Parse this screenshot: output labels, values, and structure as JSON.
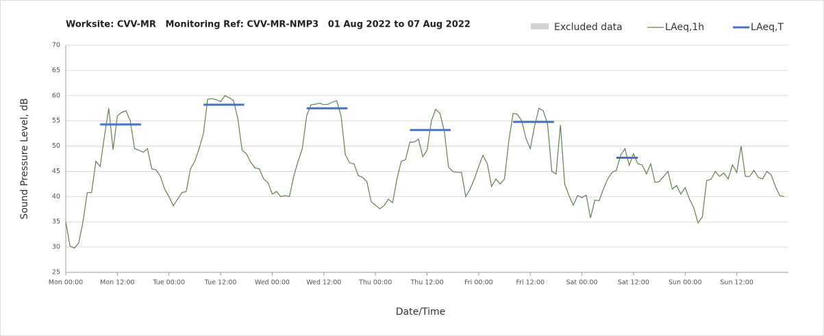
{
  "chart_data": {
    "type": "line",
    "title": "Worksite: CVV-MR   Monitoring Ref: CVV-MR-NMP3   01 Aug 2022 to 07 Aug 2022",
    "xlabel": "Date/Time",
    "ylabel": "Sound Pressure Level, dB",
    "excluded": {
      "name": "Excluded data",
      "color": "#d3d3d3"
    },
    "x": [
      0,
      1,
      2,
      3,
      4,
      5,
      6,
      7,
      8,
      9,
      10,
      11,
      12,
      13,
      14,
      15,
      16,
      17,
      18,
      19,
      20,
      21,
      22,
      23,
      24,
      25,
      26,
      27,
      28,
      29,
      30,
      31,
      32,
      33,
      34,
      35,
      36,
      37,
      38,
      39,
      40,
      41,
      42,
      43,
      44,
      45,
      46,
      47,
      48,
      49,
      50,
      51,
      52,
      53,
      54,
      55,
      56,
      57,
      58,
      59,
      60,
      61,
      62,
      63,
      64,
      65,
      66,
      67,
      68,
      69,
      70,
      71,
      72,
      73,
      74,
      75,
      76,
      77,
      78,
      79,
      80,
      81,
      82,
      83,
      84,
      85,
      86,
      87,
      88,
      89,
      90,
      91,
      92,
      93,
      94,
      95,
      96,
      97,
      98,
      99,
      100,
      101,
      102,
      103,
      104,
      105,
      106,
      107,
      108,
      109,
      110,
      111,
      112,
      113,
      114,
      115,
      116,
      117,
      118,
      119,
      120,
      121,
      122,
      123,
      124,
      125,
      126,
      127,
      128,
      129,
      130,
      131,
      132,
      133,
      134,
      135,
      136,
      137,
      138,
      139,
      140,
      141,
      142,
      143,
      144,
      145,
      146,
      147,
      148,
      149,
      150,
      151,
      152,
      153,
      154,
      155,
      156,
      157,
      158,
      159,
      160,
      161,
      162,
      163,
      164,
      165,
      166,
      167
    ],
    "series": [
      {
        "name": "LAeq,1h",
        "color": "#5f7f4f",
        "values": [
          35,
          30.2,
          29.8,
          30.8,
          35,
          40.8,
          40.8,
          47,
          46,
          52,
          57.5,
          49.3,
          56,
          56.7,
          57,
          55,
          49.5,
          49.2,
          48.8,
          49.5,
          45.5,
          45.3,
          44,
          41.5,
          40,
          38.2,
          39.5,
          40.8,
          41,
          45.5,
          47,
          49.5,
          52.5,
          59.3,
          59.4,
          59.2,
          58.8,
          60,
          59.6,
          59,
          55.5,
          49.2,
          48.5,
          46.8,
          45.7,
          45.5,
          43.5,
          42.8,
          40.5,
          41,
          40,
          40.2,
          40,
          44,
          47,
          49.5,
          56,
          58.2,
          58.3,
          58.5,
          58.2,
          58.3,
          58.7,
          59,
          56,
          48.3,
          46.7,
          46.5,
          44.2,
          43.8,
          43,
          39,
          38.3,
          37.6,
          38.2,
          39.5,
          38.8,
          43.5,
          47,
          47.3,
          50.8,
          50.8,
          51.4,
          47.9,
          49.2,
          55,
          57.3,
          56.5,
          53,
          45.8,
          45,
          44.8,
          44.8,
          40,
          41.5,
          43.5,
          46,
          48.2,
          46.5,
          42,
          43.5,
          42.5,
          43.5,
          51,
          56.5,
          56.3,
          55,
          51.5,
          49.5,
          54,
          57.5,
          57,
          54.5,
          45,
          44.5,
          54.2,
          42.5,
          40.2,
          38.3,
          40.2,
          39.8,
          40.3,
          35.8,
          39.3,
          39.2,
          41.5,
          43.5,
          44.8,
          45.2,
          48.2,
          49.5,
          46.2,
          48.5,
          46.5,
          46.3,
          44.5,
          46.5,
          42.8,
          43,
          44,
          45,
          41.5,
          42.2,
          40.5,
          41.8,
          39.5,
          37.8,
          34.8,
          36,
          43.2,
          43.4,
          45,
          44,
          44.7,
          43.5,
          46.3,
          44.8,
          50,
          44,
          44,
          45.2,
          43.8,
          43.5,
          45,
          44.3,
          42,
          40.2,
          40
        ]
      },
      {
        "name": "LAeq,T",
        "color": "#4472c4",
        "segments": [
          {
            "x": [
              8,
              17.5
            ],
            "value": 54.3
          },
          {
            "x": [
              32,
              41.5
            ],
            "value": 58.2
          },
          {
            "x": [
              56,
              65.5
            ],
            "value": 57.5
          },
          {
            "x": [
              80,
              89.5
            ],
            "value": 53.2
          },
          {
            "x": [
              104,
              113.5
            ],
            "value": 54.8
          },
          {
            "x": [
              128,
              133
            ],
            "value": 47.7
          }
        ]
      }
    ],
    "xlim": [
      0,
      168
    ],
    "xticks": [
      {
        "value": 0,
        "label": "Mon 00:00"
      },
      {
        "value": 12,
        "label": "Mon 12:00"
      },
      {
        "value": 24,
        "label": "Tue 00:00"
      },
      {
        "value": 36,
        "label": "Tue 12:00"
      },
      {
        "value": 48,
        "label": "Wed 00:00"
      },
      {
        "value": 60,
        "label": "Wed 12:00"
      },
      {
        "value": 72,
        "label": "Thu 00:00"
      },
      {
        "value": 84,
        "label": "Thu 12:00"
      },
      {
        "value": 96,
        "label": "Fri 00:00"
      },
      {
        "value": 108,
        "label": "Fri 12:00"
      },
      {
        "value": 120,
        "label": "Sat 00:00"
      },
      {
        "value": 132,
        "label": "Sat 12:00"
      },
      {
        "value": 144,
        "label": "Sun 00:00"
      },
      {
        "value": 156,
        "label": "Sun 12:00"
      }
    ],
    "ylim": [
      25,
      70
    ],
    "yticks": [
      25,
      30,
      35,
      40,
      45,
      50,
      55,
      60,
      65,
      70
    ],
    "grid": true
  }
}
